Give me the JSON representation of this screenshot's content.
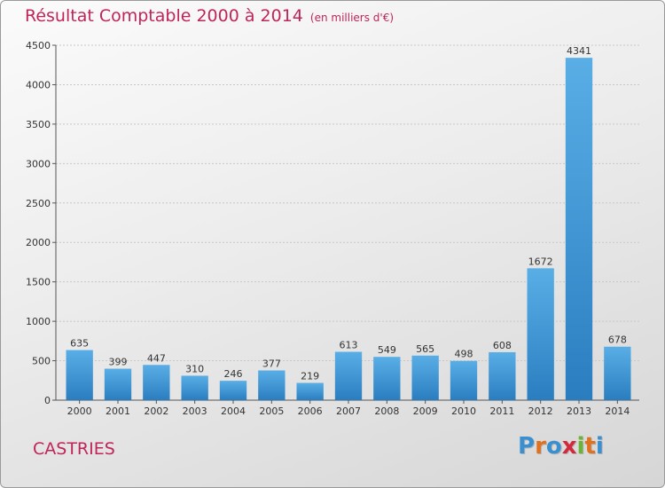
{
  "chart_data": {
    "type": "bar",
    "title": "Résultat Comptable 2000 à 2014",
    "subtitle": "(en milliers d'€)",
    "categories": [
      "2000",
      "2001",
      "2002",
      "2003",
      "2004",
      "2005",
      "2006",
      "2007",
      "2008",
      "2009",
      "2010",
      "2011",
      "2012",
      "2013",
      "2014"
    ],
    "values": [
      635,
      399,
      447,
      310,
      246,
      377,
      219,
      613,
      549,
      565,
      498,
      608,
      1672,
      4341,
      678
    ],
    "ylim": [
      0,
      4500
    ],
    "yticks": [
      0,
      500,
      1000,
      1500,
      2000,
      2500,
      3000,
      3500,
      4000,
      4500
    ],
    "grid": true,
    "bar_color_top": "#5aaee6",
    "bar_color_bottom": "#2a7ec0"
  },
  "location": "CASTRIES",
  "logo": {
    "letters": [
      "P",
      "r",
      "o",
      "x",
      "i",
      "t",
      "i"
    ],
    "colors": [
      "#3a8fd0",
      "#e0711e",
      "#3a8fd0",
      "#d4283c",
      "#6bb534",
      "#e0711e",
      "#3a8fd0"
    ]
  },
  "colors": {
    "accent": "#c0255a"
  }
}
